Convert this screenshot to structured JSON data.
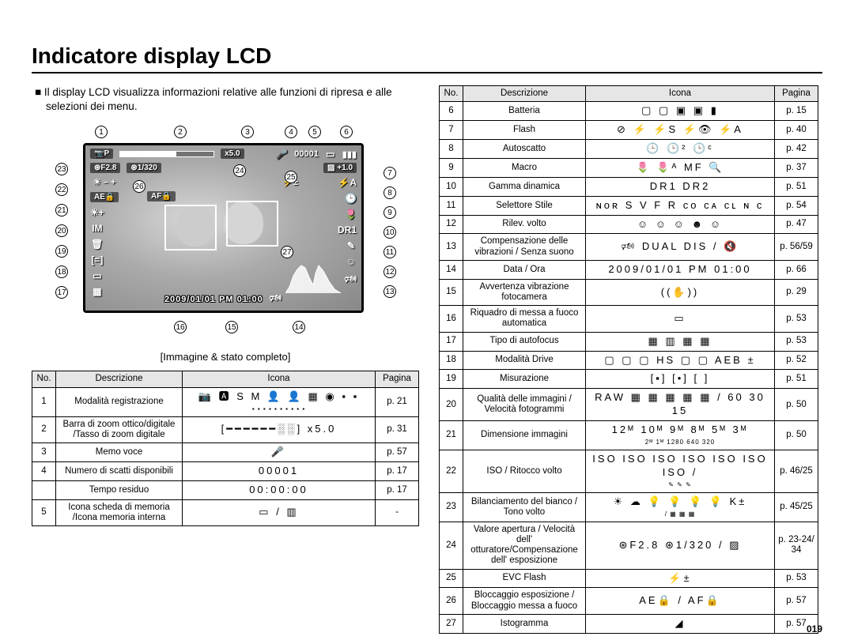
{
  "title": "Indicatore display LCD",
  "intro": "Il display LCD visualizza informazioni relative alle funzioni di ripresa e alle selezioni dei menu.",
  "caption": "[Immagine & stato completo]",
  "page_number": "019",
  "lcd": {
    "top_left_icon": "📷P",
    "zoom_label": "x5.0",
    "frames": "00001",
    "battery": "▮▮▮",
    "aperture": "⊛F2.8",
    "shutter": "⊛1/320",
    "ev": "▨ +1.0",
    "ae_lock": "AE🔒",
    "af_lock": "AF🔒",
    "flash_ev": "⚡±",
    "left_icons": [
      "☀+",
      "IM",
      "🗑",
      "[=]",
      "▭",
      "▦"
    ],
    "left_iso": "☀ – +",
    "right_icons": [
      "⚡A",
      "🕒",
      "🌷",
      "DR1",
      "✎",
      "☺",
      "🕬"
    ],
    "datetime": "2009/01/01 PM 01:00",
    "bottom_right": "🕬"
  },
  "callouts_top": [
    "1",
    "2",
    "3",
    "4",
    "5",
    "6"
  ],
  "callouts_right": [
    "7",
    "8",
    "9",
    "10",
    "11",
    "12",
    "13"
  ],
  "callouts_left": [
    "23",
    "22",
    "21",
    "20",
    "19",
    "18",
    "17"
  ],
  "callouts_bottom": [
    "16",
    "15",
    "14"
  ],
  "callouts_inner": [
    "24",
    "25",
    "26",
    "27"
  ],
  "table_left": {
    "headers": [
      "No.",
      "Descrizione",
      "Icona",
      "Pagina"
    ],
    "rows": [
      {
        "no": "1",
        "desc": "Modalità registrazione",
        "icon": "📷 🅰 S M 👤 👤 ▦ ◉ ▪ ▪\n▪ ▪ ▪ ▪ ▪ ▪ ▪ ▪ ▪ ▪",
        "page": "p. 21"
      },
      {
        "no": "2",
        "desc": "Barra di zoom ottico/digitale /Tasso di zoom digitale",
        "icon": "[━━━━━━░░] x5.0",
        "page": "p. 31"
      },
      {
        "no": "3",
        "desc": "Memo voce",
        "icon": "🎤",
        "page": "p. 57"
      },
      {
        "no": "4",
        "desc": "Numero di scatti disponibili",
        "icon": "00001",
        "page": "p. 17"
      },
      {
        "no": "",
        "desc": "Tempo residuo",
        "icon": "00:00:00",
        "page": "p. 17"
      },
      {
        "no": "5",
        "desc": "Icona scheda di memoria /Icona memoria interna",
        "icon": "▭ / ▥",
        "page": "-"
      }
    ]
  },
  "table_right": {
    "headers": [
      "No.",
      "Descrizione",
      "Icona",
      "Pagina"
    ],
    "rows": [
      {
        "no": "6",
        "desc": "Batteria",
        "icon": "▢ ▢ ▣ ▣ ▮",
        "page": "p. 15"
      },
      {
        "no": "7",
        "desc": "Flash",
        "icon": "⊘ ⚡ ⚡S ⚡👁 ⚡A",
        "page": "p. 40"
      },
      {
        "no": "8",
        "desc": "Autoscatto",
        "icon": "🕒 🕒² 🕒ᶜ",
        "page": "p. 42"
      },
      {
        "no": "9",
        "desc": "Macro",
        "icon": "🌷 🌷ᴬ MF 🔍",
        "page": "p. 37"
      },
      {
        "no": "10",
        "desc": "Gamma dinamica",
        "icon": "DR1 DR2",
        "page": "p. 51"
      },
      {
        "no": "11",
        "desc": "Selettore Stile",
        "icon": "ɴᴏʀ S V F R ᴄᴏ ᴄᴀ ᴄʟ ɴ ᴄ",
        "page": "p. 54"
      },
      {
        "no": "12",
        "desc": "Rilev. volto",
        "icon": "☺ ☺ ☺ ☻ ☺",
        "page": "p. 47"
      },
      {
        "no": "13",
        "desc": "Compensazione delle vibrazioni / Senza suono",
        "icon": "🕬 DUAL DIS / 🔇",
        "page": "p. 56/59"
      },
      {
        "no": "14",
        "desc": "Data / Ora",
        "icon": "2009/01/01 PM 01:00",
        "page": "p. 66"
      },
      {
        "no": "15",
        "desc": "Avvertenza vibrazione fotocamera",
        "icon": "((✋))",
        "page": "p. 29"
      },
      {
        "no": "16",
        "desc": "Riquadro di messa a fuoco automatica",
        "icon": "▭",
        "page": "p. 53"
      },
      {
        "no": "17",
        "desc": "Tipo di autofocus",
        "icon": "▦ ▥ ▦ ▦",
        "page": "p. 53"
      },
      {
        "no": "18",
        "desc": "Modalità Drive",
        "icon": "▢ ▢ ▢ HS ▢ ▢ AEB ±",
        "page": "p. 52"
      },
      {
        "no": "19",
        "desc": "Misurazione",
        "icon": "[▪] [•] [ ]",
        "page": "p. 51"
      },
      {
        "no": "20",
        "desc": "Qualità delle immagini / Velocità fotogrammi",
        "icon": "RAW ▦ ▦ ▦ ▦ ▦ / 60 30 15",
        "page": "p. 50"
      },
      {
        "no": "21",
        "desc": "Dimensione immagini",
        "icon": "12ᴹ 10ᴹ 9ᴹ 8ᴹ 5ᴹ 3ᴹ\n2ᴹ 1ᴹ 1280 640 320",
        "page": "p. 50"
      },
      {
        "no": "22",
        "desc": "ISO / Ritocco volto",
        "icon": "ISO ISO ISO ISO ISO ISO ISO /\n✎ ✎ ✎",
        "page": "p. 46/25"
      },
      {
        "no": "23",
        "desc": "Bilanciamento del bianco / Tono volto",
        "icon": "☀ ☁ 💡 💡 💡 💡 K±\n/ ▦ ▦ ▦",
        "page": "p. 45/25"
      },
      {
        "no": "24",
        "desc": "Valore apertura / Velocità dell' otturatore/Compensazione dell' esposizione",
        "icon": "⊛F2.8  ⊛1/320 / ▨",
        "page": "p. 23-24/ 34"
      },
      {
        "no": "25",
        "desc": "EVC Flash",
        "icon": "⚡±",
        "page": "p. 53"
      },
      {
        "no": "26",
        "desc": "Bloccaggio esposizione / Bloccaggio messa a fuoco",
        "icon": "AE🔒 / AF🔒",
        "page": "p. 57"
      },
      {
        "no": "27",
        "desc": "Istogramma",
        "icon": "◢",
        "page": "p. 57"
      }
    ]
  }
}
